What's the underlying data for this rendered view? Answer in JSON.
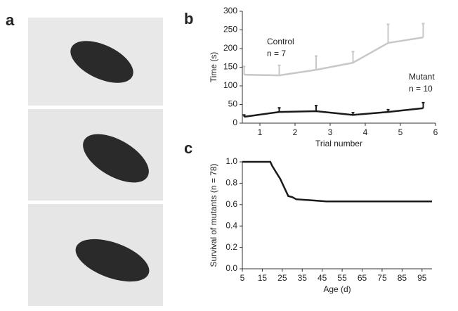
{
  "panel_labels": [
    "a",
    "b",
    "c"
  ],
  "chart_data": [
    {
      "type": "line",
      "x_label": "Trial number",
      "y_label": "Time (s)",
      "xlim": [
        0.5,
        6
      ],
      "xticks": [
        1,
        2,
        3,
        4,
        5,
        6
      ],
      "ylim": [
        0,
        300
      ],
      "yticks": [
        0,
        50,
        100,
        150,
        200,
        250,
        300
      ],
      "x": [
        0.55,
        1.55,
        2.6,
        3.65,
        4.65,
        5.65
      ],
      "series": [
        {
          "name": "Control",
          "color": "#c8c8c8",
          "values": [
            130,
            128,
            143,
            162,
            215,
            230
          ],
          "errors": [
            22,
            27,
            37,
            30,
            50,
            37
          ],
          "annotation": "n = 7"
        },
        {
          "name": "Mutant",
          "color": "#1a1a1a",
          "values": [
            17,
            30,
            32,
            22,
            30,
            40
          ],
          "errors": [
            5,
            11,
            15,
            6,
            6,
            15
          ],
          "annotation": "n = 10"
        }
      ]
    },
    {
      "type": "step",
      "x_label": "Age (d)",
      "y_label": "Survival of mutants (n = 78)",
      "xlim": [
        5,
        100
      ],
      "xticks": [
        5,
        15,
        25,
        35,
        45,
        55,
        65,
        75,
        85,
        95
      ],
      "ylim": [
        0,
        1
      ],
      "yticks": [
        {
          "value": 0,
          "label": "0.0"
        },
        {
          "value": 0.2,
          "label": "0.2"
        },
        {
          "value": 0.4,
          "label": "0.4"
        },
        {
          "value": 0.6,
          "label": "0.6"
        },
        {
          "value": 0.8,
          "label": "0.8"
        },
        {
          "value": 1,
          "label": "1.0"
        }
      ],
      "x": [
        5,
        19,
        20,
        21,
        22,
        23,
        24,
        25,
        26,
        27,
        28,
        30,
        32,
        40,
        47,
        100
      ],
      "values": [
        1.0,
        1.0,
        0.96,
        0.93,
        0.9,
        0.87,
        0.84,
        0.8,
        0.76,
        0.72,
        0.68,
        0.67,
        0.65,
        0.64,
        0.63,
        0.63
      ],
      "color": "#1a1a1a"
    }
  ]
}
